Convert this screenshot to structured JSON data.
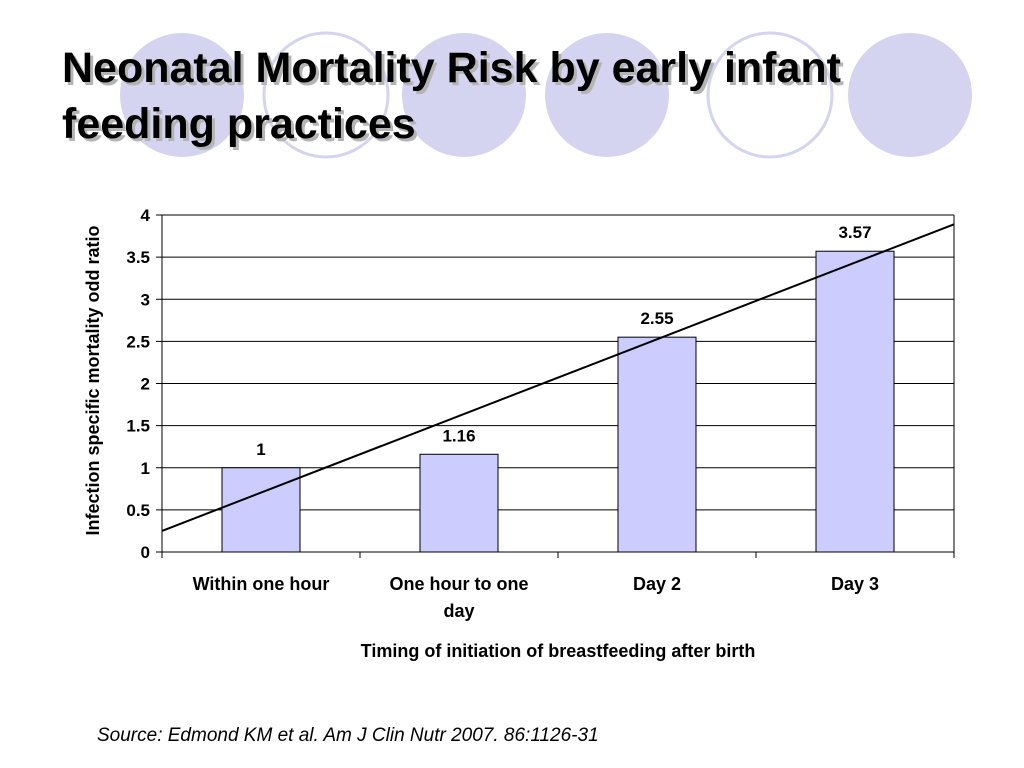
{
  "slide": {
    "title_line1": "Neonatal Mortality Risk by early infant",
    "title_line2": "feeding practices",
    "source": "Source: Edmond KM et al. Am J Clin Nutr 2007. 86:1126-31",
    "theme_colors": {
      "circle_fill": "#d4d4f0",
      "circle_stroke": "#d4d4f0"
    }
  },
  "chart_data": {
    "type": "bar",
    "title": "",
    "xlabel": "Timing of initiation of breastfeeding after birth",
    "ylabel": "Infection specific mortality odd ratio",
    "categories": [
      [
        "Within one hour"
      ],
      [
        "One hour to one",
        "day"
      ],
      [
        "Day 2"
      ],
      [
        "Day 3"
      ]
    ],
    "series": [
      {
        "values": [
          1,
          1.16,
          2.55,
          3.57
        ],
        "data_labels": [
          "1",
          "1.16",
          "2.55",
          "3.57"
        ]
      }
    ],
    "ylim": [
      0,
      4
    ],
    "yticks": [
      0,
      0.5,
      1,
      1.5,
      2,
      2.5,
      3,
      3.5,
      4
    ],
    "ytick_labels": [
      "0",
      "0.5",
      "1",
      "1.5",
      "2",
      "2.5",
      "3",
      "3.5",
      "4"
    ],
    "grid": true,
    "legend": "none",
    "trendline": {
      "type": "linear",
      "x_start": 0.5,
      "x_end": 4.5
    },
    "colors": {
      "bar_fill": "#ccccff",
      "bar_stroke": "#000000",
      "grid": "#000000",
      "trendline": "#000000"
    }
  }
}
